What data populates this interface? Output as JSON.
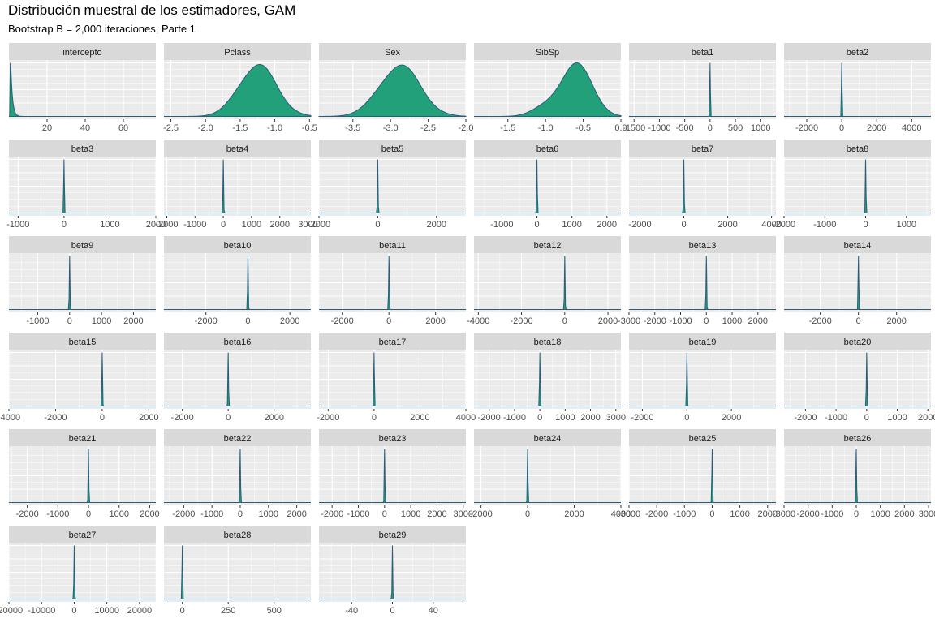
{
  "title": "Distribución muestral de los estimadores, GAM",
  "subtitle": "Bootstrap B = 2,000 iteraciones, Parte 1",
  "colors": {
    "panel_bg": "#ebebeb",
    "strip_bg": "#d9d9d9",
    "grid": "#ffffff",
    "density_fill": "#21a07a",
    "density_line": "#2a5e78"
  },
  "chart_data": {
    "type": "area",
    "layout": {
      "columns": 6,
      "rows": 6
    },
    "facets": [
      {
        "name": "intercepto",
        "xlim": [
          0,
          77
        ],
        "ticks": [
          20,
          40,
          60
        ],
        "tick_labels": [
          "20",
          "40",
          "60"
        ],
        "density": {
          "mode": 0.8,
          "spread": 0.6,
          "peak": 1.0,
          "shape": "right-skewed"
        }
      },
      {
        "name": "Pclass",
        "xlim": [
          -2.6,
          -0.48
        ],
        "ticks": [
          -2.5,
          -2.0,
          -1.5,
          -1.0,
          -0.5
        ],
        "tick_labels": [
          "-2.5",
          "-2.0",
          "-1.5",
          "-1.0",
          "-0.5"
        ],
        "density": {
          "mode": -1.25,
          "spread": 0.27,
          "peak": 0.97,
          "shape": "smooth"
        }
      },
      {
        "name": "Sex",
        "xlim": [
          -3.95,
          -2.0
        ],
        "ticks": [
          -3.5,
          -3.0,
          -2.5,
          -2.0
        ],
        "tick_labels": [
          "-3.5",
          "-3.0",
          "-2.5",
          "-2.0"
        ],
        "density": {
          "mode": -2.88,
          "spread": 0.27,
          "peak": 0.96,
          "shape": "smooth"
        }
      },
      {
        "name": "SibSp",
        "xlim": [
          -1.95,
          0.0
        ],
        "ticks": [
          -1.5,
          -1.0,
          -0.5,
          0.0
        ],
        "tick_labels": [
          "-1.5",
          "-1.0",
          "-0.5",
          "0.0"
        ],
        "density": {
          "mode": -0.58,
          "spread": 0.2,
          "peak": 1.0,
          "shape": "left-skewed"
        }
      },
      {
        "name": "beta1",
        "xlim": [
          -1600,
          1300
        ],
        "ticks": [
          -1500,
          -1000,
          -500,
          0,
          500,
          1000
        ],
        "tick_labels": [
          "-1500",
          "-1000",
          "-500",
          "0",
          "500",
          "1000"
        ],
        "density": {
          "mode": 0,
          "peak": 1.0,
          "shape": "spike"
        }
      },
      {
        "name": "beta2",
        "xlim": [
          -3300,
          5100
        ],
        "ticks": [
          -2000,
          0,
          2000,
          4000
        ],
        "tick_labels": [
          "-2000",
          "0",
          "2000",
          "4000"
        ],
        "density": {
          "mode": 0,
          "peak": 1.0,
          "shape": "spike"
        }
      },
      {
        "name": "beta3",
        "xlim": [
          -1200,
          2000
        ],
        "ticks": [
          -1000,
          0,
          1000,
          2000
        ],
        "tick_labels": [
          "-1000",
          "0",
          "1000",
          "2000"
        ],
        "density": {
          "mode": 0,
          "peak": 1.0,
          "shape": "spike"
        }
      },
      {
        "name": "beta4",
        "xlim": [
          -2100,
          3100
        ],
        "ticks": [
          -2000,
          -1000,
          0,
          1000,
          2000,
          3000
        ],
        "tick_labels": [
          "-2000",
          "-1000",
          "0",
          "1000",
          "2000",
          "3000"
        ],
        "density": {
          "mode": 0,
          "peak": 1.0,
          "shape": "spike"
        }
      },
      {
        "name": "beta5",
        "xlim": [
          -2000,
          3000
        ],
        "ticks": [
          -2000,
          0,
          2000
        ],
        "tick_labels": [
          "-2000",
          "0",
          "2000"
        ],
        "density": {
          "mode": 0,
          "peak": 1.0,
          "shape": "spike"
        }
      },
      {
        "name": "beta6",
        "xlim": [
          -1800,
          2400
        ],
        "ticks": [
          -1000,
          0,
          1000,
          2000
        ],
        "tick_labels": [
          "-1000",
          "0",
          "1000",
          "2000"
        ],
        "density": {
          "mode": 0,
          "peak": 1.0,
          "shape": "spike"
        }
      },
      {
        "name": "beta7",
        "xlim": [
          -2500,
          4200
        ],
        "ticks": [
          -2000,
          0,
          2000,
          4000
        ],
        "tick_labels": [
          "-2000",
          "0",
          "2000",
          "4000"
        ],
        "density": {
          "mode": 0,
          "peak": 1.0,
          "shape": "spike"
        }
      },
      {
        "name": "beta8",
        "xlim": [
          -2000,
          1600
        ],
        "ticks": [
          -2000,
          -1000,
          0,
          1000
        ],
        "tick_labels": [
          "-2000",
          "-1000",
          "0",
          "1000"
        ],
        "density": {
          "mode": 0,
          "peak": 1.0,
          "shape": "spike"
        }
      },
      {
        "name": "beta9",
        "xlim": [
          -1900,
          2700
        ],
        "ticks": [
          -1000,
          0,
          1000,
          2000
        ],
        "tick_labels": [
          "-1000",
          "0",
          "1000",
          "2000"
        ],
        "density": {
          "mode": 0,
          "peak": 1.0,
          "shape": "spike"
        }
      },
      {
        "name": "beta10",
        "xlim": [
          -4000,
          3000
        ],
        "ticks": [
          -2000,
          0,
          2000
        ],
        "tick_labels": [
          "-2000",
          "0",
          "2000"
        ],
        "density": {
          "mode": 0,
          "peak": 1.0,
          "shape": "spike"
        }
      },
      {
        "name": "beta11",
        "xlim": [
          -3000,
          3300
        ],
        "ticks": [
          -2000,
          0,
          2000
        ],
        "tick_labels": [
          "-2000",
          "0",
          "2000"
        ],
        "density": {
          "mode": 0,
          "peak": 1.0,
          "shape": "spike"
        }
      },
      {
        "name": "beta12",
        "xlim": [
          -4200,
          2600
        ],
        "ticks": [
          -4000,
          -2000,
          0,
          2000
        ],
        "tick_labels": [
          "-4000",
          "-2000",
          "0",
          "2000"
        ],
        "density": {
          "mode": 0,
          "peak": 1.0,
          "shape": "spike"
        }
      },
      {
        "name": "beta13",
        "xlim": [
          -3000,
          2700
        ],
        "ticks": [
          -3000,
          -2000,
          -1000,
          0,
          1000,
          2000
        ],
        "tick_labels": [
          "-3000",
          "-2000",
          "-1000",
          "0",
          "1000",
          "2000"
        ],
        "density": {
          "mode": 0,
          "peak": 1.0,
          "shape": "spike"
        }
      },
      {
        "name": "beta14",
        "xlim": [
          -3900,
          3800
        ],
        "ticks": [
          -2000,
          0,
          2000
        ],
        "tick_labels": [
          "-2000",
          "0",
          "2000"
        ],
        "density": {
          "mode": 0,
          "peak": 1.0,
          "shape": "spike"
        }
      },
      {
        "name": "beta15",
        "xlim": [
          -4000,
          2300
        ],
        "ticks": [
          -4000,
          -2000,
          0,
          2000
        ],
        "tick_labels": [
          "-4000",
          "-2000",
          "0",
          "2000"
        ],
        "density": {
          "mode": 0,
          "peak": 1.0,
          "shape": "spike"
        }
      },
      {
        "name": "beta16",
        "xlim": [
          -2800,
          3600
        ],
        "ticks": [
          -2000,
          0,
          2000
        ],
        "tick_labels": [
          "-2000",
          "0",
          "2000"
        ],
        "density": {
          "mode": 0,
          "peak": 1.0,
          "shape": "spike"
        }
      },
      {
        "name": "beta17",
        "xlim": [
          -2400,
          4000
        ],
        "ticks": [
          -2000,
          0,
          2000,
          4000
        ],
        "tick_labels": [
          "-2000",
          "0",
          "2000",
          "4000"
        ],
        "density": {
          "mode": 0,
          "peak": 1.0,
          "shape": "spike"
        }
      },
      {
        "name": "beta18",
        "xlim": [
          -2600,
          3200
        ],
        "ticks": [
          -2000,
          -1000,
          0,
          1000,
          2000,
          3000
        ],
        "tick_labels": [
          "-2000",
          "-1000",
          "0",
          "1000",
          "2000",
          "3000"
        ],
        "density": {
          "mode": 0,
          "peak": 1.0,
          "shape": "spike"
        }
      },
      {
        "name": "beta19",
        "xlim": [
          -2600,
          4000
        ],
        "ticks": [
          -2000,
          0,
          2000
        ],
        "tick_labels": [
          "-2000",
          "0",
          "2000"
        ],
        "density": {
          "mode": 0,
          "peak": 1.0,
          "shape": "spike"
        }
      },
      {
        "name": "beta20",
        "xlim": [
          -2700,
          2100
        ],
        "ticks": [
          -2000,
          -1000,
          0,
          1000,
          2000
        ],
        "tick_labels": [
          "-2000",
          "-1000",
          "0",
          "1000",
          "2000"
        ],
        "density": {
          "mode": 0,
          "peak": 1.0,
          "shape": "spike"
        }
      },
      {
        "name": "beta21",
        "xlim": [
          -2600,
          2200
        ],
        "ticks": [
          -2000,
          -1000,
          0,
          1000,
          2000
        ],
        "tick_labels": [
          "-2000",
          "-1000",
          "0",
          "1000",
          "2000"
        ],
        "density": {
          "mode": 0,
          "peak": 1.0,
          "shape": "spike"
        }
      },
      {
        "name": "beta22",
        "xlim": [
          -2700,
          2500
        ],
        "ticks": [
          -2000,
          -1000,
          0,
          1000,
          2000
        ],
        "tick_labels": [
          "-2000",
          "-1000",
          "0",
          "1000",
          "2000"
        ],
        "density": {
          "mode": 0,
          "peak": 1.0,
          "shape": "spike"
        }
      },
      {
        "name": "beta23",
        "xlim": [
          -2500,
          3100
        ],
        "ticks": [
          -2000,
          -1000,
          0,
          1000,
          2000,
          3000
        ],
        "tick_labels": [
          "-2000",
          "-1000",
          "0",
          "1000",
          "2000",
          "3000"
        ],
        "density": {
          "mode": 0,
          "peak": 1.0,
          "shape": "spike"
        }
      },
      {
        "name": "beta24",
        "xlim": [
          -2300,
          4000
        ],
        "ticks": [
          -2000,
          0,
          2000,
          4000
        ],
        "tick_labels": [
          "-2000",
          "0",
          "2000",
          "4000"
        ],
        "density": {
          "mode": 0,
          "peak": 1.0,
          "shape": "spike"
        }
      },
      {
        "name": "beta25",
        "xlim": [
          -3000,
          2300
        ],
        "ticks": [
          -3000,
          -2000,
          -1000,
          0,
          1000,
          2000
        ],
        "tick_labels": [
          "-3000",
          "-2000",
          "-1000",
          "0",
          "1000",
          "2000"
        ],
        "density": {
          "mode": 0,
          "peak": 1.0,
          "shape": "spike"
        }
      },
      {
        "name": "beta26",
        "xlim": [
          -3000,
          3100
        ],
        "ticks": [
          -3000,
          -2000,
          -1000,
          0,
          1000,
          2000,
          3000
        ],
        "tick_labels": [
          "-3000",
          "-2000",
          "-1000",
          "0",
          "1000",
          "2000",
          "3000"
        ],
        "density": {
          "mode": 0,
          "peak": 1.0,
          "shape": "spike"
        }
      },
      {
        "name": "beta27",
        "xlim": [
          -20000,
          25000
        ],
        "ticks": [
          -20000,
          -10000,
          0,
          10000,
          20000
        ],
        "tick_labels": [
          "-20000",
          "-10000",
          "0",
          "10000",
          "20000"
        ],
        "density": {
          "mode": 0,
          "peak": 1.0,
          "shape": "spike"
        }
      },
      {
        "name": "beta28",
        "xlim": [
          -100,
          700
        ],
        "ticks": [
          0,
          250,
          500
        ],
        "tick_labels": [
          "0",
          "250",
          "500"
        ],
        "density": {
          "mode": 0,
          "peak": 1.0,
          "shape": "spike"
        }
      },
      {
        "name": "beta29",
        "xlim": [
          -72,
          72
        ],
        "ticks": [
          -40,
          0,
          40
        ],
        "tick_labels": [
          "-40",
          "0",
          "40"
        ],
        "density": {
          "mode": 0,
          "peak": 1.0,
          "shape": "spike"
        }
      }
    ]
  }
}
